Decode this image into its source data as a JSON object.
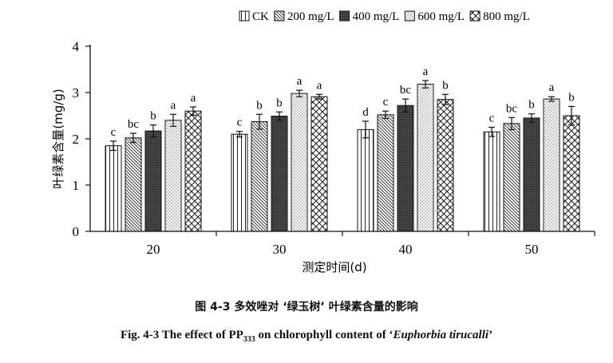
{
  "chart_data": {
    "type": "bar",
    "ylabel": "叶绿素含量(mg/g)",
    "xlabel": "测定时间(d)",
    "categories": [
      "20",
      "30",
      "40",
      "50"
    ],
    "ylim": [
      0,
      4
    ],
    "yticks": [
      "0",
      "1",
      "2",
      "3",
      "4"
    ],
    "legend_position": "top-right",
    "series": [
      {
        "name": "CK",
        "pattern": "vertical-lines",
        "values": [
          1.85,
          2.1,
          2.2,
          2.15
        ],
        "errors": [
          0.1,
          0.06,
          0.18,
          0.1
        ],
        "letters": [
          "c",
          "c",
          "d",
          "c"
        ]
      },
      {
        "name": "200 mg/L",
        "pattern": "diagonal-back",
        "values": [
          2.02,
          2.37,
          2.52,
          2.33
        ],
        "errors": [
          0.1,
          0.16,
          0.08,
          0.13
        ],
        "letters": [
          "bc",
          "b",
          "c",
          "bc"
        ]
      },
      {
        "name": "400 mg/L",
        "pattern": "dark-fill",
        "values": [
          2.17,
          2.49,
          2.72,
          2.45
        ],
        "errors": [
          0.13,
          0.09,
          0.14,
          0.09
        ],
        "letters": [
          "b",
          "b",
          "bc",
          "b"
        ]
      },
      {
        "name": "600 mg/L",
        "pattern": "dotted",
        "values": [
          2.4,
          2.98,
          3.18,
          2.86
        ],
        "errors": [
          0.13,
          0.07,
          0.08,
          0.05
        ],
        "letters": [
          "a",
          "a",
          "a",
          "a"
        ]
      },
      {
        "name": "800 mg/L",
        "pattern": "diagonal-cross",
        "values": [
          2.6,
          2.91,
          2.85,
          2.5
        ],
        "errors": [
          0.09,
          0.05,
          0.11,
          0.2
        ],
        "letters": [
          "a",
          "a",
          "b",
          "b"
        ]
      }
    ]
  },
  "caption": {
    "cn": "图 4-3  多效唑对 ‘绿玉树’ 叶绿素含量的影响",
    "en_before": "Fig. 4-3 The effect of PP",
    "en_sub": "333",
    "en_middle": " on chlorophyll content of ‘",
    "en_species": "Euphorbia tirucalli",
    "en_after": "’"
  }
}
